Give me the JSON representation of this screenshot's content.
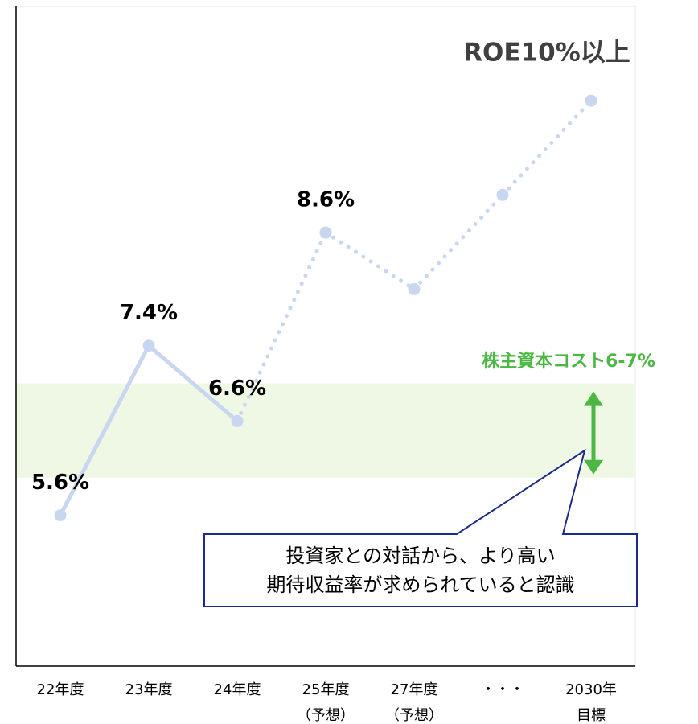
{
  "chart_data": {
    "type": "line",
    "categories": [
      [
        "22年度"
      ],
      [
        "23年度"
      ],
      [
        "24年度"
      ],
      [
        "25年度",
        "（予想）"
      ],
      [
        "27年度",
        "（予想）"
      ],
      [
        "・・・"
      ],
      [
        "2030年",
        "目標"
      ]
    ],
    "series": [
      {
        "color": "#c9d6f0",
        "values": [
          5.6,
          7.4,
          6.6,
          8.6,
          8.0,
          9.0,
          10.0
        ],
        "value_labels": [
          "5.6%",
          "7.4%",
          "6.6%",
          "8.6%",
          null,
          null,
          null
        ],
        "segment_styles": [
          "solid",
          "solid",
          "dotted",
          "dotted",
          "dotted",
          "dotted"
        ]
      }
    ],
    "ylim": [
      4,
      11
    ],
    "annotations": [
      {
        "text": "ROE10%以上",
        "point": 6,
        "color": "#404040"
      }
    ],
    "band": {
      "label": "株主資本コスト6-7%",
      "range": [
        6,
        7
      ],
      "color": "#eef8e4",
      "label_color": "#4cb843"
    },
    "callout": {
      "lines": [
        "投資家との対話から、より高い",
        "期待収益率が求められていると認識"
      ],
      "border_color": "#1c2a8a"
    }
  }
}
